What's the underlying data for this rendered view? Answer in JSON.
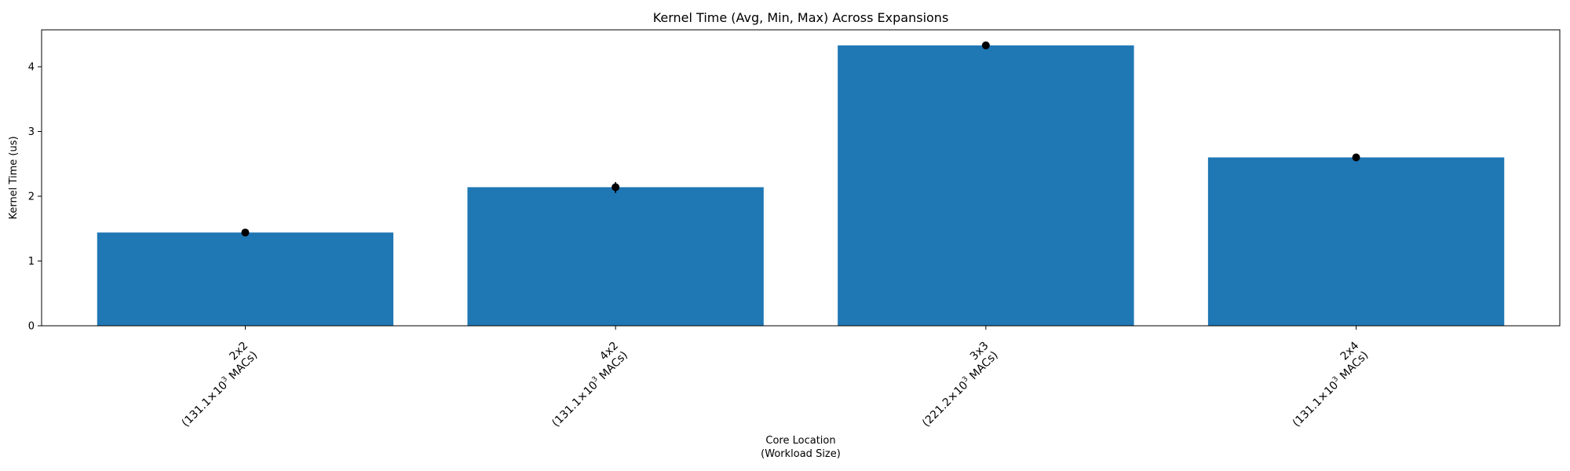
{
  "chart_data": {
    "type": "bar",
    "title": "Kernel Time (Avg, Min, Max) Across Expansions",
    "xlabel_lines": [
      "Core Location",
      "(Workload Size)"
    ],
    "ylabel": "Kernel Time (us)",
    "ylim": [
      0,
      4.57
    ],
    "yticks": [
      0,
      1,
      2,
      3,
      4
    ],
    "grid": false,
    "legend": "none",
    "bar_color": "#1f77b4",
    "marker_color": "#000000",
    "categories": [
      {
        "core": "2x2",
        "workload": "(131.1×10",
        "exp": "3",
        "unit": " MACs)"
      },
      {
        "core": "4x2",
        "workload": "(131.1×10",
        "exp": "3",
        "unit": " MACs)"
      },
      {
        "core": "3x3",
        "workload": "(221.2×10",
        "exp": "3",
        "unit": " MACs)"
      },
      {
        "core": "2x4",
        "workload": "(131.1×10",
        "exp": "3",
        "unit": " MACs)"
      }
    ],
    "values": [
      1.44,
      2.14,
      4.33,
      2.6
    ],
    "min": [
      1.42,
      2.05,
      4.31,
      2.54
    ],
    "max": [
      1.46,
      2.22,
      4.35,
      2.64
    ]
  }
}
